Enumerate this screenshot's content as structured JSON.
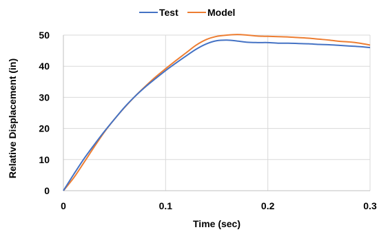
{
  "chart_data": {
    "type": "line",
    "title": "",
    "xlabel": "Time (sec)",
    "ylabel": "Relative Displacement (in)",
    "xlim": [
      0,
      0.3
    ],
    "ylim": [
      0,
      50
    ],
    "x_ticks": [
      0,
      0.1,
      0.2,
      0.3
    ],
    "x_tick_labels": [
      "0",
      "0.1",
      "0.2",
      "0.3"
    ],
    "y_ticks": [
      0,
      10,
      20,
      30,
      40,
      50
    ],
    "y_tick_labels": [
      "0",
      "10",
      "20",
      "30",
      "40",
      "50"
    ],
    "grid": true,
    "legend": "top-center",
    "series": [
      {
        "name": "Test",
        "color": "#4472C4",
        "x": [
          0,
          0.01,
          0.02,
          0.03,
          0.04,
          0.05,
          0.06,
          0.07,
          0.08,
          0.09,
          0.1,
          0.11,
          0.12,
          0.13,
          0.14,
          0.15,
          0.16,
          0.17,
          0.18,
          0.19,
          0.2,
          0.21,
          0.22,
          0.23,
          0.24,
          0.25,
          0.26,
          0.27,
          0.28,
          0.29,
          0.3
        ],
        "values": [
          0,
          5.2,
          10.2,
          14.7,
          19.0,
          23.0,
          26.9,
          30.3,
          33.3,
          36.0,
          38.6,
          41.0,
          43.3,
          45.5,
          47.2,
          48.2,
          48.4,
          48.1,
          47.7,
          47.6,
          47.6,
          47.4,
          47.4,
          47.3,
          47.2,
          47.0,
          46.9,
          46.7,
          46.5,
          46.3,
          46.0
        ]
      },
      {
        "name": "Model",
        "color": "#ED7D31",
        "x": [
          0,
          0.01,
          0.02,
          0.03,
          0.04,
          0.05,
          0.06,
          0.07,
          0.08,
          0.09,
          0.1,
          0.11,
          0.12,
          0.13,
          0.14,
          0.15,
          0.16,
          0.17,
          0.18,
          0.19,
          0.2,
          0.21,
          0.22,
          0.23,
          0.24,
          0.25,
          0.26,
          0.27,
          0.28,
          0.29,
          0.3
        ],
        "values": [
          0,
          4.1,
          9.0,
          14.0,
          18.8,
          23.0,
          26.8,
          30.3,
          33.5,
          36.5,
          39.2,
          41.8,
          44.3,
          46.8,
          48.6,
          49.6,
          50.0,
          50.2,
          50.0,
          49.7,
          49.6,
          49.5,
          49.4,
          49.2,
          49.0,
          48.7,
          48.4,
          48.0,
          47.8,
          47.4,
          46.8
        ]
      }
    ]
  }
}
